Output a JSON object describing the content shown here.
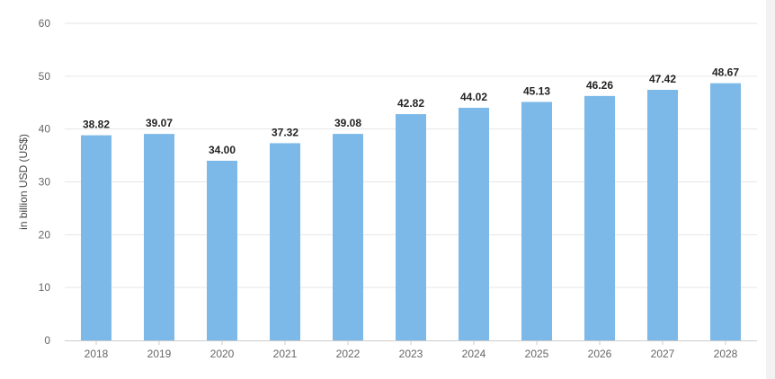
{
  "chart_data": {
    "type": "bar",
    "categories": [
      "2018",
      "2019",
      "2020",
      "2021",
      "2022",
      "2023",
      "2024",
      "2025",
      "2026",
      "2027",
      "2028"
    ],
    "values": [
      38.82,
      39.07,
      34.0,
      37.32,
      39.08,
      42.82,
      44.02,
      45.13,
      46.26,
      47.42,
      48.67
    ],
    "value_labels": [
      "38.82",
      "39.07",
      "34.00",
      "37.32",
      "39.08",
      "42.82",
      "44.02",
      "45.13",
      "46.26",
      "47.42",
      "48.67"
    ],
    "ylabel": "in billion USD (US$)",
    "ylim": [
      0,
      60
    ],
    "yticks": [
      "0",
      "10",
      "20",
      "30",
      "40",
      "50",
      "60"
    ],
    "grid": true,
    "bar_color": "#7cb9e8",
    "grid_color": "#e6e6e6"
  }
}
